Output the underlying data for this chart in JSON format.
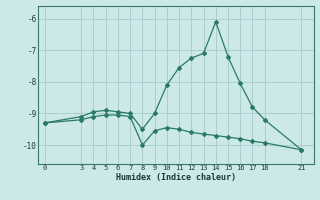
{
  "xlabel": "Humidex (Indice chaleur)",
  "bg_color": "#cce8e8",
  "grid_color": "#aacece",
  "line_color": "#2a7a6a",
  "line1_x": [
    0,
    3,
    4,
    5,
    6,
    7,
    8,
    9,
    10,
    11,
    12,
    13,
    14,
    15,
    16,
    17,
    18,
    21
  ],
  "line1_y": [
    -9.3,
    -9.1,
    -8.95,
    -8.9,
    -8.95,
    -9.0,
    -9.5,
    -9.0,
    -8.1,
    -7.55,
    -7.25,
    -7.1,
    -6.1,
    -7.2,
    -8.05,
    -8.8,
    -9.2,
    -10.15
  ],
  "line2_x": [
    0,
    3,
    4,
    5,
    6,
    7,
    8,
    9,
    10,
    11,
    12,
    13,
    14,
    15,
    16,
    17,
    18,
    21
  ],
  "line2_y": [
    -9.3,
    -9.2,
    -9.1,
    -9.05,
    -9.05,
    -9.1,
    -10.0,
    -9.55,
    -9.45,
    -9.5,
    -9.6,
    -9.65,
    -9.7,
    -9.75,
    -9.8,
    -9.88,
    -9.93,
    -10.15
  ],
  "xticks": [
    0,
    3,
    4,
    5,
    6,
    7,
    8,
    9,
    10,
    11,
    12,
    13,
    14,
    15,
    16,
    17,
    18,
    21
  ],
  "yticks": [
    -6,
    -7,
    -8,
    -9,
    -10
  ],
  "ylim": [
    -10.6,
    -5.6
  ],
  "xlim": [
    -0.5,
    22.0
  ]
}
